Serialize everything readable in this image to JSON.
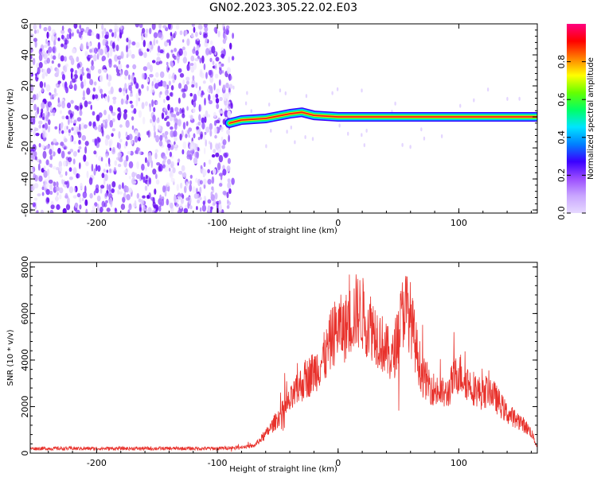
{
  "figure": {
    "title": "GN02.2023.305.22.02.E03"
  },
  "colors": {
    "axis": "#000000",
    "snr_line": "#e8312b",
    "noise_scatter": "#7b1fe8",
    "colormap": [
      "#e6d9ff",
      "#c9a6ff",
      "#9b4dff",
      "#3a00ff",
      "#0080ff",
      "#00e5ff",
      "#00ff66",
      "#66ff00",
      "#ffff00",
      "#ff8000",
      "#ff0000",
      "#ff0080"
    ]
  },
  "chart_data": [
    {
      "type": "heatmap",
      "title": "GN02.2023.305.22.02.E03",
      "xlabel": "Height of straight line (km)",
      "ylabel": "Frequency (Hz)",
      "xlim": [
        -255,
        165
      ],
      "ylim": [
        -62,
        60
      ],
      "x_ticks": [
        -200,
        -100,
        0,
        100
      ],
      "y_ticks": [
        -60,
        -40,
        -20,
        0,
        20,
        40,
        60
      ],
      "x_tick_labels": [
        "-200",
        "-100",
        "0",
        "100"
      ],
      "y_tick_labels": [
        "-60",
        "-40",
        "-20",
        "0",
        "20",
        "40",
        "60"
      ],
      "noise_region_x": [
        -255,
        -87
      ],
      "signal_track": {
        "x": [
          -90,
          -80,
          -60,
          -40,
          -30,
          -20,
          0,
          50,
          90,
          165
        ],
        "frequency": [
          -4,
          -2,
          -1,
          2,
          3,
          1,
          0,
          0,
          0,
          0
        ]
      },
      "colorbar": {
        "label": "Normalized spectral amplitude",
        "ticks": [
          0.0,
          0.2,
          0.4,
          0.6,
          0.8
        ],
        "tick_labels": [
          "0.0",
          "0.2",
          "0.4",
          "0.6",
          "0.8"
        ],
        "range": [
          0,
          1
        ]
      },
      "grid": false
    },
    {
      "type": "line",
      "xlabel": "Height of straight line (km)",
      "ylabel": "SNR (10 * v/v)",
      "xlim": [
        -255,
        165
      ],
      "ylim": [
        0,
        8200
      ],
      "x_ticks": [
        -200,
        -100,
        0,
        100
      ],
      "y_ticks": [
        0,
        2000,
        4000,
        6000,
        8000
      ],
      "x_tick_labels": [
        "-200",
        "-100",
        "0",
        "100"
      ],
      "y_tick_labels": [
        "0",
        "2000",
        "4000",
        "6000",
        "8000"
      ],
      "envelope": {
        "x": [
          -255,
          -100,
          -70,
          -60,
          -50,
          -40,
          -30,
          -20,
          -10,
          -5,
          0,
          5,
          10,
          15,
          20,
          30,
          40,
          45,
          50,
          55,
          60,
          65,
          70,
          80,
          90,
          95,
          100,
          110,
          120,
          125,
          130,
          140,
          150,
          160,
          165
        ],
        "y": [
          200,
          200,
          300,
          800,
          1500,
          2200,
          3000,
          3500,
          4200,
          5000,
          5400,
          5300,
          5700,
          6100,
          6000,
          5300,
          4400,
          4000,
          5200,
          6400,
          5800,
          4400,
          3300,
          2700,
          2500,
          3100,
          3500,
          2900,
          2500,
          2800,
          2400,
          1700,
          1400,
          900,
          250
        ]
      },
      "grid": false
    }
  ]
}
